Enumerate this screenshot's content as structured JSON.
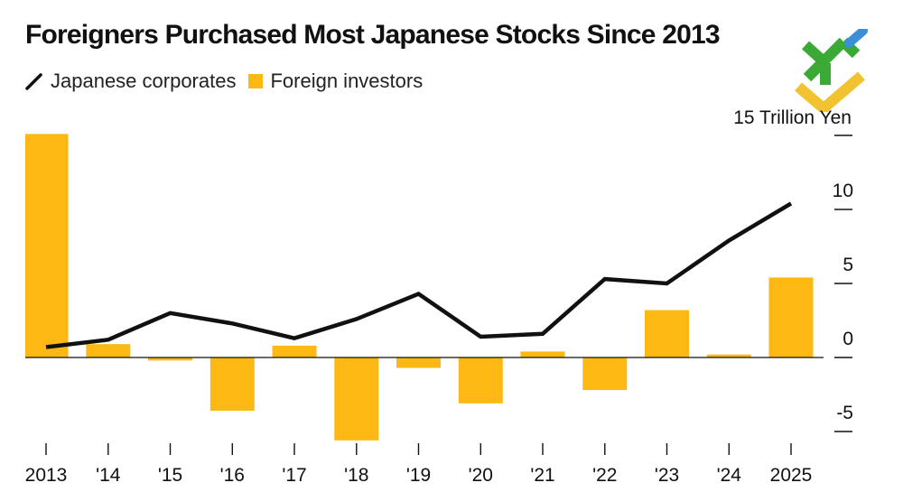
{
  "title": "Foreigners Purchased Most Japanese Stocks Since 2013",
  "legend": {
    "line_label": "Japanese corporates",
    "bar_label": "Foreign investors"
  },
  "logo_icon": "brand-logo-icon",
  "colors": {
    "bar": "#FDB813",
    "line": "#111111",
    "logo_green": "#3BA935",
    "logo_yellow": "#F2C230",
    "logo_blue": "#3B8ED8"
  },
  "chart_data": {
    "type": "bar",
    "title": "Foreigners Purchased Most Japanese Stocks Since 2013",
    "unit_label": "15 Trillion Yen",
    "categories": [
      "2013",
      "'14",
      "'15",
      "'16",
      "'17",
      "'18",
      "'19",
      "'20",
      "'21",
      "'22",
      "'23",
      "'24",
      "2025"
    ],
    "series": [
      {
        "name": "Foreign investors",
        "type": "bar",
        "values": [
          15.1,
          0.9,
          -0.2,
          -3.6,
          0.8,
          -5.6,
          -0.7,
          -3.1,
          0.4,
          -2.2,
          3.2,
          0.2,
          5.4
        ]
      },
      {
        "name": "Japanese corporates",
        "type": "line",
        "values": [
          0.7,
          1.2,
          3.0,
          2.3,
          1.3,
          2.6,
          4.3,
          1.4,
          1.6,
          5.3,
          5.0,
          7.9,
          10.4
        ]
      }
    ],
    "y_ticks": [
      15,
      10,
      5,
      0,
      -5
    ],
    "y_tick_labels": [
      "",
      "10",
      "5",
      "0",
      "-5"
    ],
    "ylim": [
      -6,
      15.5
    ],
    "xlabel": "",
    "ylabel": "",
    "grid": false,
    "legend_position": "top-left"
  }
}
